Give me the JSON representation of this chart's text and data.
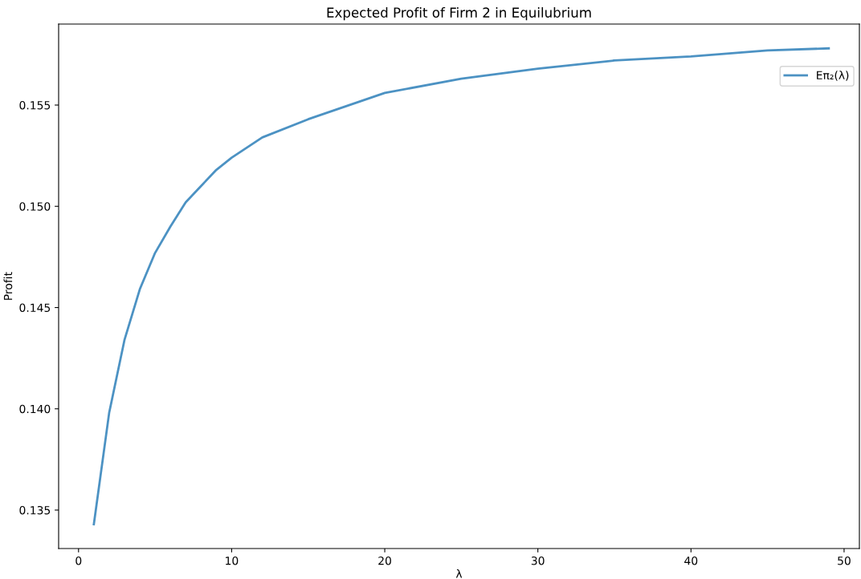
{
  "chart_data": {
    "type": "line",
    "title": "Expected Profit of Firm 2 in Equilubrium",
    "xlabel": "λ",
    "ylabel": "Profit",
    "x": [
      1,
      2,
      3,
      4,
      5,
      6,
      7,
      8,
      9,
      10,
      12,
      15,
      20,
      25,
      30,
      35,
      40,
      45,
      49
    ],
    "series": [
      {
        "name": "Eπ₂(λ)",
        "color": "#4c92c3",
        "values": [
          0.1343,
          0.1398,
          0.1434,
          0.1459,
          0.1477,
          0.149,
          0.1502,
          0.151,
          0.1518,
          0.1524,
          0.1534,
          0.1543,
          0.1556,
          0.1563,
          0.1568,
          0.1572,
          0.1574,
          0.1577,
          0.1578
        ]
      }
    ],
    "xlim": [
      -1.3,
      51.0
    ],
    "xticks": [
      0,
      10,
      20,
      30,
      40,
      50
    ],
    "ylim": [
      0.1331,
      0.159
    ],
    "yticks": [
      {
        "value": 0.135,
        "label": "0.135"
      },
      {
        "value": 0.14,
        "label": "0.140"
      },
      {
        "value": 0.145,
        "label": "0.145"
      },
      {
        "value": 0.15,
        "label": "0.150"
      },
      {
        "value": 0.155,
        "label": "0.155"
      }
    ],
    "grid": false,
    "legend": "top right",
    "marker": "none",
    "line_style": "solid"
  }
}
